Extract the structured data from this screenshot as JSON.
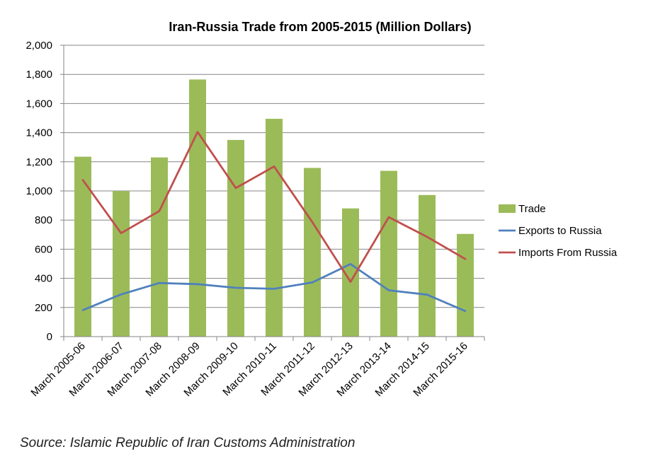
{
  "chart_data": {
    "type": "bar",
    "title": "Iran-Russia  Trade from 2005-2015 (Million Dollars)",
    "xlabel": "",
    "ylabel": "",
    "categories": [
      "March 2005-06",
      "March 2006-07",
      "March 2007-08",
      "March 2008-09",
      "March 2009-10",
      "March 2010-11",
      "March 2011-12",
      "March 2012-13",
      "March 2013-14",
      "March 2014-15",
      "March 2015-16"
    ],
    "ylim": [
      0,
      2000
    ],
    "y_ticks": [
      "0",
      "200",
      "400",
      "600",
      "800",
      "1,000",
      "1,200",
      "1,400",
      "1,600",
      "1,800",
      "2,000"
    ],
    "grid": true,
    "legend_position": "right",
    "series": [
      {
        "name": "Trade",
        "type": "bar",
        "color": "#9bbb59",
        "values": [
          1235,
          1000,
          1230,
          1765,
          1350,
          1495,
          1158,
          880,
          1138,
          972,
          705
        ]
      },
      {
        "name": "Exports to Russia",
        "type": "line",
        "color": "#4f81bd",
        "values": [
          182,
          290,
          368,
          360,
          335,
          328,
          372,
          498,
          318,
          288,
          175
        ]
      },
      {
        "name": "Imports From Russia",
        "type": "line",
        "color": "#c0504d",
        "values": [
          1075,
          710,
          862,
          1405,
          1020,
          1168,
          786,
          376,
          820,
          685,
          533
        ]
      }
    ]
  },
  "source": "Source: Islamic Republic of Iran Customs Administration"
}
